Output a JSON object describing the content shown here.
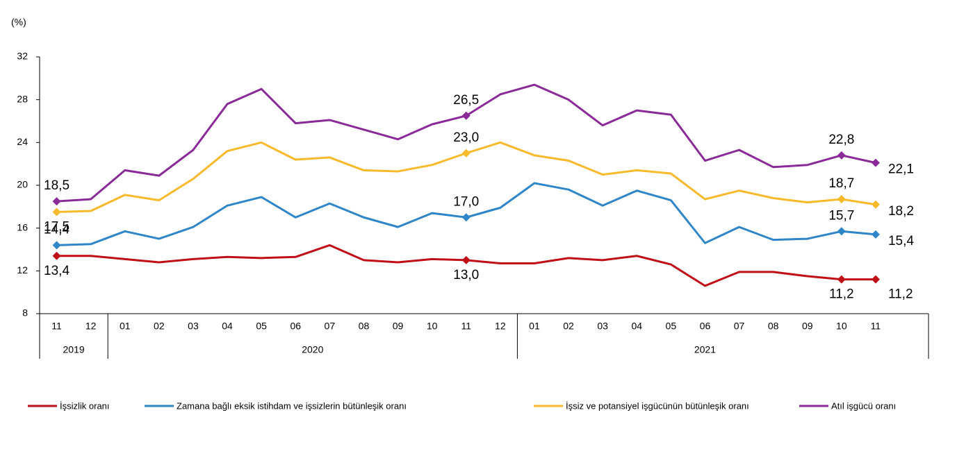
{
  "chart_data": {
    "type": "line",
    "y_unit_label": "(%)",
    "groups": [
      {
        "label": "2019",
        "categories": [
          "11",
          "12"
        ]
      },
      {
        "label": "2020",
        "categories": [
          "01",
          "02",
          "03",
          "04",
          "05",
          "06",
          "07",
          "08",
          "09",
          "10",
          "11",
          "12"
        ]
      },
      {
        "label": "2021",
        "categories": [
          "01",
          "02",
          "03",
          "04",
          "05",
          "06",
          "07",
          "08",
          "09",
          "10",
          "11"
        ]
      }
    ],
    "ylim": [
      8,
      32
    ],
    "yticks": [
      8,
      12,
      16,
      20,
      24,
      28,
      32
    ],
    "grid": false,
    "series": [
      {
        "name": "İşsizlik oranı",
        "color": "#c00f17",
        "values": [
          13.4,
          13.4,
          13.1,
          12.8,
          13.1,
          13.3,
          13.2,
          13.3,
          14.4,
          13.0,
          12.8,
          13.1,
          13.0,
          12.7,
          12.7,
          13.2,
          13.0,
          13.4,
          12.6,
          10.6,
          11.9,
          11.9,
          11.5,
          11.2,
          11.2
        ],
        "value_labels": [
          "13,4",
          null,
          null,
          null,
          null,
          null,
          null,
          null,
          null,
          null,
          null,
          null,
          "13,0",
          null,
          null,
          null,
          null,
          null,
          null,
          null,
          null,
          null,
          null,
          "11,2",
          "11,2"
        ]
      },
      {
        "name": "Zamana bağlı eksik istihdam ve işsizlerin bütünleşik oranı",
        "color": "#2e86c8",
        "values": [
          14.4,
          14.5,
          15.7,
          15.0,
          16.1,
          18.1,
          18.9,
          17.0,
          18.3,
          17.0,
          16.1,
          17.4,
          17.0,
          17.9,
          20.2,
          19.6,
          18.1,
          19.5,
          18.6,
          14.6,
          16.1,
          14.9,
          15.0,
          15.7,
          15.4
        ],
        "value_labels": [
          "14,4",
          null,
          null,
          null,
          null,
          null,
          null,
          null,
          null,
          null,
          null,
          null,
          "17,0",
          null,
          null,
          null,
          null,
          null,
          null,
          null,
          null,
          null,
          null,
          "15,7",
          "15,4"
        ]
      },
      {
        "name": "İşsiz ve potansiyel işgücünün bütünleşik oranı",
        "color": "#f8b92b",
        "values": [
          17.5,
          17.6,
          19.1,
          18.6,
          20.6,
          23.2,
          24.0,
          22.4,
          22.6,
          21.4,
          21.3,
          21.9,
          23.0,
          24.0,
          22.8,
          22.3,
          21.0,
          21.4,
          21.1,
          18.7,
          19.5,
          18.8,
          18.4,
          18.7,
          18.2
        ],
        "value_labels": [
          "17,5",
          null,
          null,
          null,
          null,
          null,
          null,
          null,
          null,
          null,
          null,
          null,
          "23,0",
          null,
          null,
          null,
          null,
          null,
          null,
          null,
          null,
          null,
          null,
          "18,7",
          "18,2"
        ]
      },
      {
        "name": "Atıl işgücü oranı",
        "color": "#8a2a98",
        "values": [
          18.5,
          18.7,
          21.4,
          20.9,
          23.3,
          27.6,
          29.0,
          25.8,
          26.1,
          25.2,
          24.3,
          25.7,
          26.5,
          28.5,
          29.4,
          28.0,
          25.6,
          27.0,
          26.6,
          22.3,
          23.3,
          21.7,
          21.9,
          22.8,
          22.1
        ],
        "value_labels": [
          "18,5",
          null,
          null,
          null,
          null,
          null,
          null,
          null,
          null,
          null,
          null,
          null,
          "26,5",
          null,
          null,
          null,
          null,
          null,
          null,
          null,
          null,
          null,
          null,
          "22,8",
          "22,1"
        ]
      }
    ]
  }
}
